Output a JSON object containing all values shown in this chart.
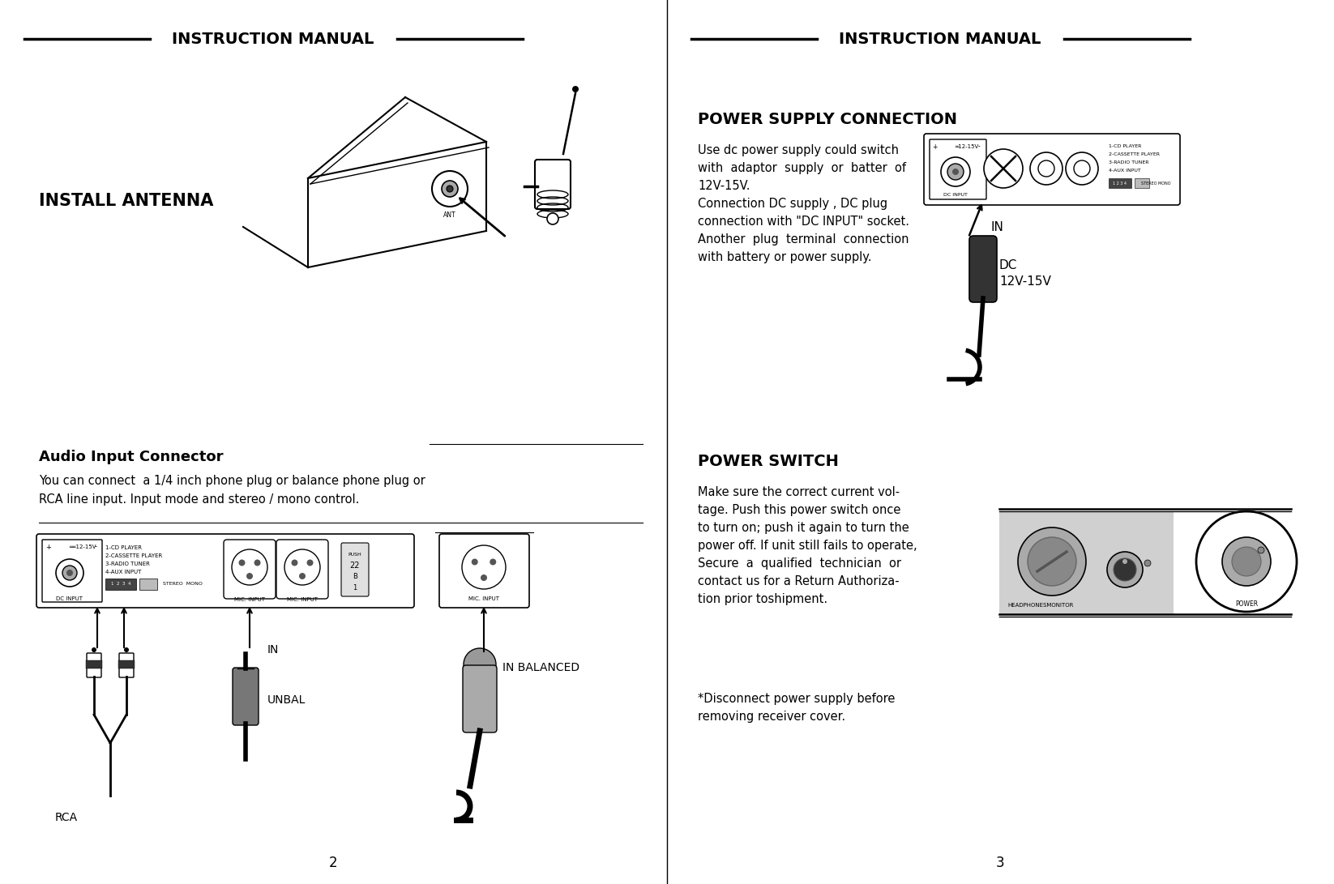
{
  "bg_color": "#ffffff",
  "text_color": "#000000",
  "line_color": "#000000",
  "left_page": {
    "header": "INSTRUCTION MANUAL",
    "section1_title": "INSTALL ANTENNA",
    "section2_title": "Audio Input Connector",
    "section2_text_line1": "You can connect  a 1/4 inch phone plug or balance phone plug or",
    "section2_text_line2": "RCA line input. Input mode and stereo / mono control.",
    "page_num": "2"
  },
  "right_page": {
    "header": "INSTRUCTION MANUAL",
    "section1_title": "POWER SUPPLY CONNECTION",
    "section1_text": "Use dc power supply could switch\nwith  adaptor  supply  or  batter  of\n12V-15V.\nConnection DC supply , DC plug\nconnection with \"DC INPUT\" socket.\nAnother  plug  terminal  connection\nwith battery or power supply.",
    "section2_title": "POWER SWITCH",
    "section2_text": "Make sure the correct current vol-\ntage. Push this power switch once\nto turn on; push it again to turn the\npower off. If unit still fails to operate,\nSecure  a  qualified  technician  or\ncontact us for a Return Authoriza-\ntion prior toshipment.",
    "section2_note": "*Disconnect power supply before\nremoving receiver cover.",
    "page_num": "3"
  }
}
